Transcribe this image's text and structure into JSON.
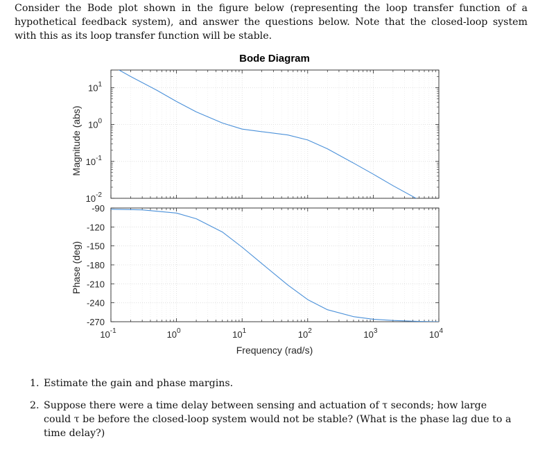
{
  "intro_text": "Consider the Bode plot shown in the figure below (representing the loop transfer function of a hypothetical feedback system), and answer the questions below. Note that the closed-loop system with this as its loop transfer function will be stable.",
  "chart_data": {
    "type": "line",
    "title": "Bode Diagram",
    "xlabel": "Frequency (rad/s)",
    "x_scale": "log",
    "xlim": [
      0.1,
      10000
    ],
    "x_ticks": [
      {
        "base": "10",
        "exp": "-1"
      },
      {
        "base": "10",
        "exp": "0"
      },
      {
        "base": "10",
        "exp": "1"
      },
      {
        "base": "10",
        "exp": "2"
      },
      {
        "base": "10",
        "exp": "3"
      },
      {
        "base": "10",
        "exp": "4"
      }
    ],
    "magnitude": {
      "ylabel": "Magnitude (abs)",
      "y_scale": "log",
      "ylim": [
        0.01,
        30
      ],
      "y_ticks": [
        {
          "base": "10",
          "exp": "1",
          "value": 10
        },
        {
          "base": "10",
          "exp": "0",
          "value": 1
        },
        {
          "base": "10",
          "exp": "-1",
          "value": 0.1
        },
        {
          "base": "10",
          "exp": "-2",
          "value": 0.01
        }
      ],
      "series": [
        {
          "x": [
            0.1,
            0.2,
            0.5,
            1,
            2,
            5,
            10,
            20,
            50,
            100,
            200,
            500,
            1000,
            2000,
            5000
          ],
          "y": [
            40,
            20,
            8.5,
            4.2,
            2.2,
            1.1,
            0.75,
            0.64,
            0.52,
            0.38,
            0.22,
            0.09,
            0.045,
            0.022,
            0.009
          ]
        }
      ]
    },
    "phase": {
      "ylabel": "Phase (deg)",
      "ylim": [
        -270,
        -90
      ],
      "y_ticks": [
        -90,
        -120,
        -150,
        -180,
        -210,
        -240,
        -270
      ],
      "series": [
        {
          "x": [
            0.1,
            0.3,
            1,
            2,
            5,
            10,
            20,
            50,
            100,
            200,
            500,
            1000,
            2000,
            5000,
            10000
          ],
          "y": [
            -92,
            -93,
            -98,
            -107,
            -128,
            -152,
            -178,
            -212,
            -235,
            -251,
            -262,
            -266,
            -268,
            -269.5,
            -270
          ]
        }
      ]
    },
    "grid": true,
    "legend": "none",
    "colors": {
      "line": "#4a90d9",
      "axes": "#262626",
      "grid": "#e6e6e6"
    }
  },
  "questions": [
    {
      "num": "1.",
      "text": "Estimate the gain and phase margins."
    },
    {
      "num": "2.",
      "text": "Suppose there were a time delay between sensing and actuation of τ seconds; how large could τ be before the closed-loop system would not be stable? (What is the phase lag due to a time delay?)"
    }
  ]
}
